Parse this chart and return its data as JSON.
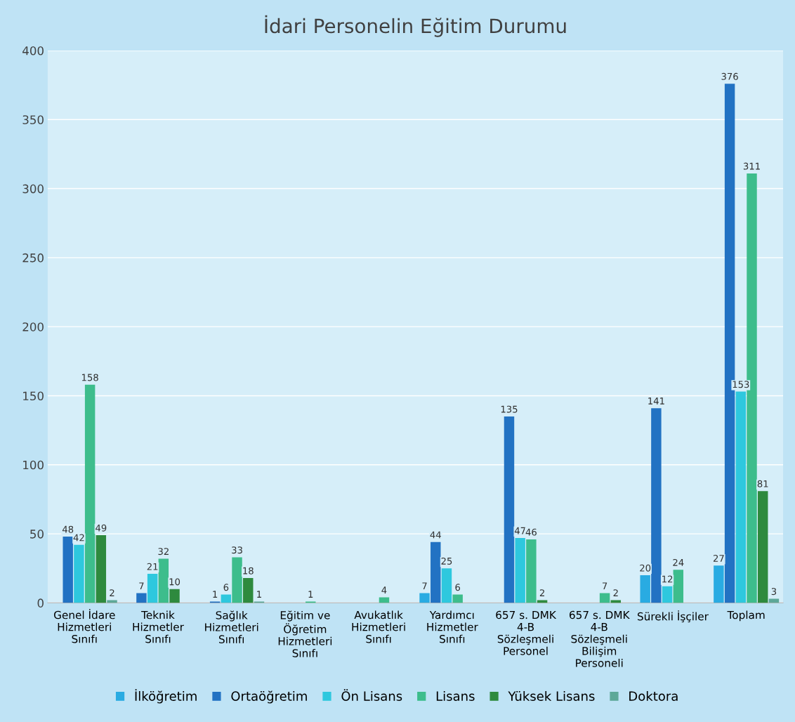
{
  "chart_data": {
    "type": "bar",
    "title": "İdari Personelin Eğitim Durumu",
    "categories": [
      "Genel İdare\nHizmetleri\nSınıfı",
      "Teknik\nHizmetler\nSınıfı",
      "Sağlık\nHizmetleri\nSınıfı",
      "Eğitim ve\nÖğretim\nHizmetleri\nSınıfı",
      "Avukatlık\nHizmetleri\nSınıfı",
      "Yardımcı\nHizmetler\nSınıfı",
      "657 s. DMK\n4-B\nSözleşmeli\nPersonel",
      "657 s. DMK\n4-B\nSözleşmeli\nBilişim\nPersoneli",
      "Sürekli İşçiler",
      "Toplam"
    ],
    "series": [
      {
        "name": "İlköğretim",
        "color": "#29abe2",
        "values": [
          null,
          null,
          null,
          null,
          null,
          7,
          null,
          null,
          20,
          27
        ]
      },
      {
        "name": "Ortaöğretim",
        "color": "#2272c3",
        "values": [
          48,
          7,
          1,
          null,
          null,
          44,
          135,
          null,
          141,
          376
        ]
      },
      {
        "name": "Ön Lisans",
        "color": "#2ec8de",
        "values": [
          42,
          21,
          6,
          null,
          null,
          25,
          47,
          null,
          12,
          153
        ]
      },
      {
        "name": "Lisans",
        "color": "#3dbd8c",
        "values": [
          158,
          32,
          33,
          1,
          4,
          6,
          46,
          7,
          24,
          311
        ]
      },
      {
        "name": "Yüksek Lisans",
        "color": "#2e8a3e",
        "values": [
          49,
          10,
          18,
          null,
          null,
          null,
          2,
          2,
          null,
          81
        ]
      },
      {
        "name": "Doktora",
        "color": "#5da898",
        "values": [
          2,
          null,
          1,
          null,
          null,
          null,
          null,
          null,
          null,
          3
        ]
      }
    ],
    "ylim": [
      0,
      400
    ],
    "yticks": [
      0,
      50,
      100,
      150,
      200,
      250,
      300,
      350,
      400
    ],
    "grid": "y",
    "legend": "bottom",
    "data_labels": true
  }
}
